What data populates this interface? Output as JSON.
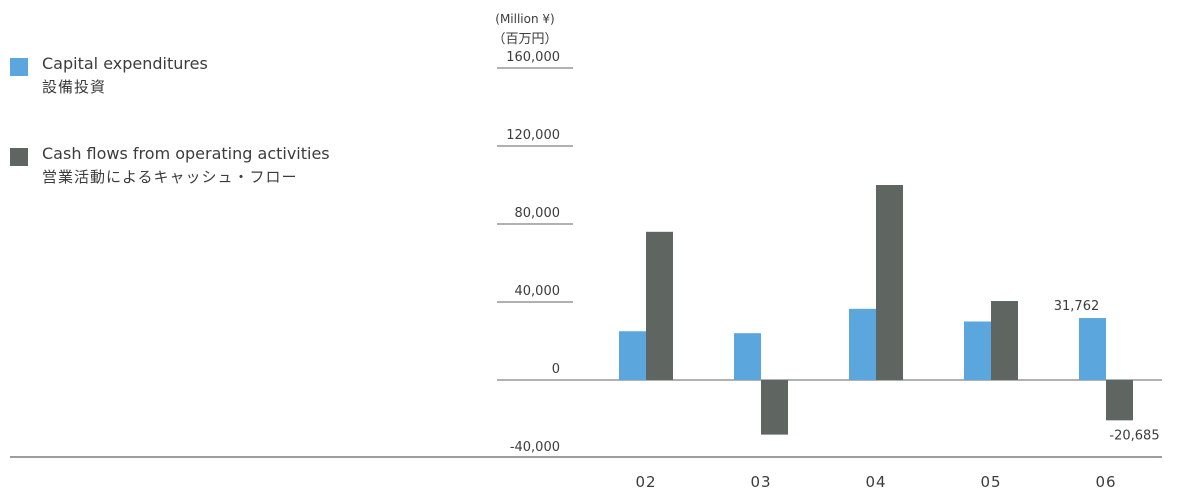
{
  "chart_data": {
    "type": "bar",
    "unit_label": "(Million ¥)",
    "unit_label_ja": "（百万円）",
    "categories": [
      "02",
      "03",
      "04",
      "05",
      "06"
    ],
    "series": [
      {
        "name": "Capital expenditures",
        "name_ja": "設備投資",
        "color": "#5ba6dc",
        "values": [
          25000,
          24000,
          36500,
          30000,
          31762
        ]
      },
      {
        "name": "Cash flows from operating activities",
        "name_ja": "営業活動によるキャッシュ・フロー",
        "color": "#5f6661",
        "values": [
          76000,
          -28000,
          100000,
          40500,
          -20685
        ]
      }
    ],
    "y_ticks": [
      "160,000",
      "120,000",
      "80,000",
      "40,000",
      "0",
      "-40,000"
    ],
    "y_tick_values": [
      160000,
      120000,
      80000,
      40000,
      0,
      -40000
    ],
    "ylim": [
      -40000,
      160000
    ],
    "data_labels": [
      {
        "series": 0,
        "category": "06",
        "text": "31,762"
      },
      {
        "series": 1,
        "category": "06",
        "text": "-20,685"
      }
    ],
    "grid": false,
    "legend_position": "left"
  }
}
